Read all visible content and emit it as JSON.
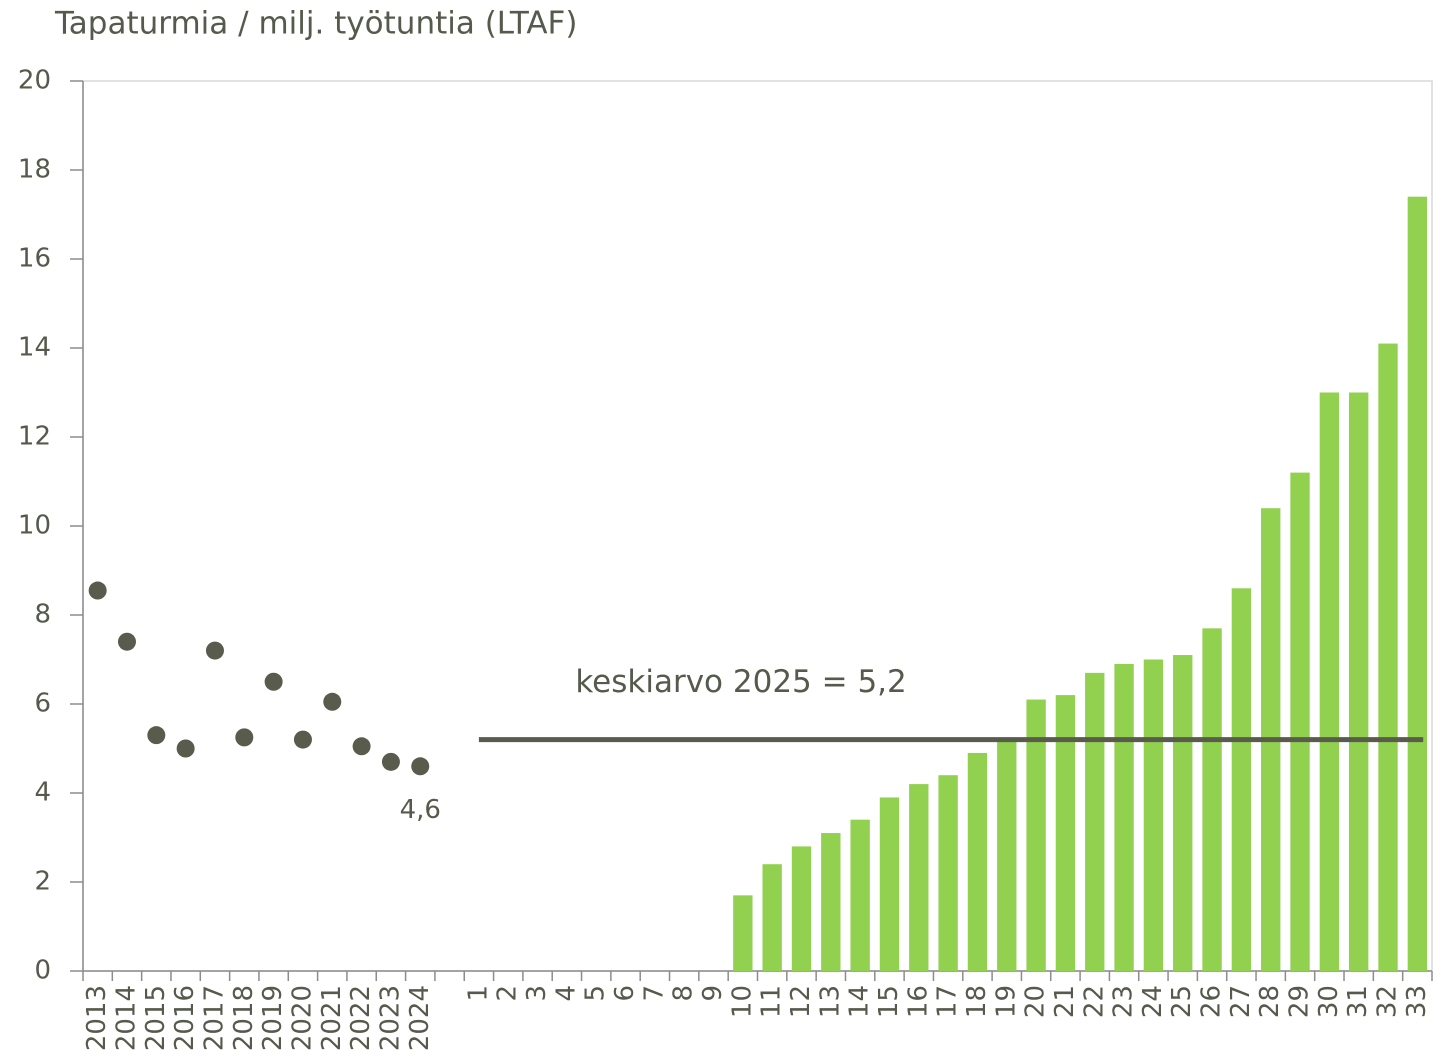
{
  "chart_data": {
    "type": "bar",
    "y_label": "Tapaturmia / milj. työtuntia (LTAF)",
    "categories": [
      "2013",
      "2014",
      "2015",
      "2016",
      "2017",
      "2018",
      "2019",
      "2020",
      "2021",
      "2022",
      "2023",
      "2024",
      null,
      "1",
      "2",
      "3",
      "4",
      "5",
      "6",
      "7",
      "8",
      "9",
      "10",
      "11",
      "12",
      "13",
      "14",
      "15",
      "16",
      "17",
      "18",
      "19",
      "20",
      "21",
      "22",
      "23",
      "24",
      "25",
      "26",
      "27",
      "28",
      "29",
      "30",
      "31",
      "32",
      "33"
    ],
    "series": [
      {
        "kind": "scatter",
        "color": "#595b4c",
        "values": [
          8.55,
          7.4,
          5.3,
          5.0,
          7.2,
          5.25,
          6.5,
          5.2,
          6.05,
          5.05,
          4.7,
          4.6,
          null,
          null,
          null,
          null,
          null,
          null,
          null,
          null,
          null,
          null,
          null,
          null,
          null,
          null,
          null,
          null,
          null,
          null,
          null,
          null,
          null,
          null,
          null,
          null,
          null,
          null,
          null,
          null,
          null,
          null,
          null,
          null,
          null,
          null
        ],
        "value_labels": [
          null,
          null,
          null,
          null,
          null,
          null,
          null,
          null,
          null,
          null,
          null,
          "4,6",
          null,
          null,
          null,
          null,
          null,
          null,
          null,
          null,
          null,
          null,
          null,
          null,
          null,
          null,
          null,
          null,
          null,
          null,
          null,
          null,
          null,
          null,
          null,
          null,
          null,
          null,
          null,
          null,
          null,
          null,
          null,
          null,
          null,
          null
        ]
      },
      {
        "kind": "bar",
        "color": "#92d050",
        "values": [
          null,
          null,
          null,
          null,
          null,
          null,
          null,
          null,
          null,
          null,
          null,
          null,
          null,
          null,
          null,
          null,
          null,
          null,
          null,
          null,
          null,
          null,
          1.7,
          2.4,
          2.8,
          3.1,
          3.4,
          3.9,
          4.2,
          4.4,
          4.9,
          5.2,
          6.1,
          6.2,
          6.7,
          6.9,
          7.0,
          7.1,
          7.7,
          8.6,
          10.4,
          11.2,
          13.0,
          13.0,
          14.1,
          17.4
        ]
      }
    ],
    "average": {
      "label": "keskiarvo 2025 = 5,2",
      "value": 5.2,
      "color": "#595b4c",
      "from": "1",
      "to": "33"
    },
    "ylim": [
      0,
      20
    ],
    "yticks": [
      0,
      2,
      4,
      6,
      8,
      10,
      12,
      14,
      16,
      18,
      20
    ],
    "grid": false
  }
}
